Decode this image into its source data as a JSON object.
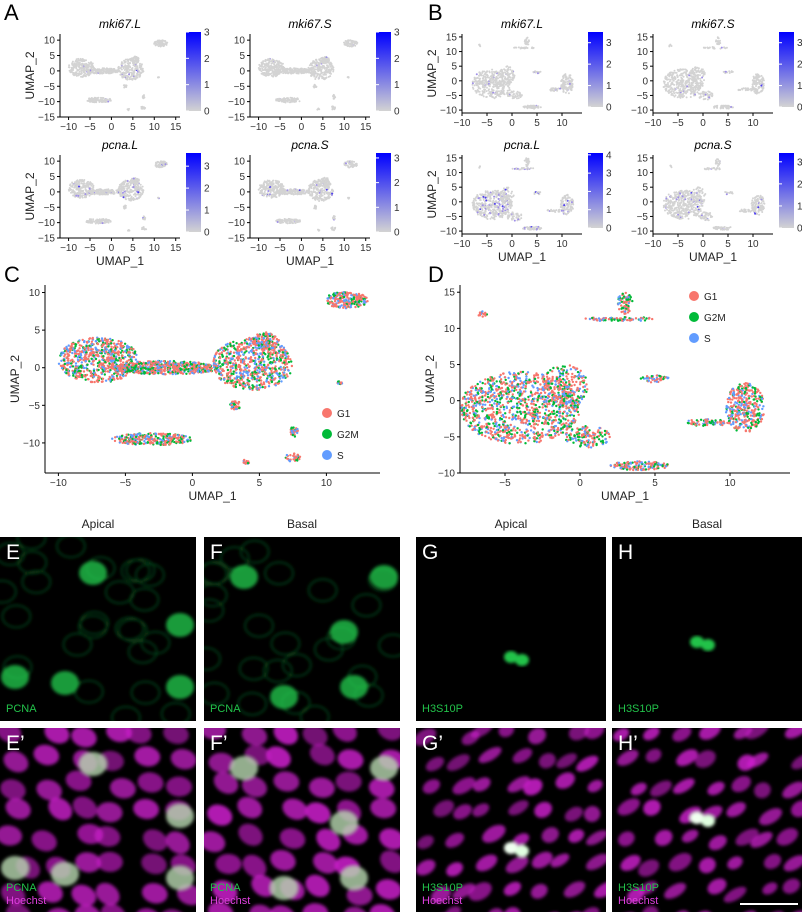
{
  "panel_labels": {
    "A": "A",
    "B": "B",
    "C": "C",
    "D": "D",
    "E": "E",
    "F": "F",
    "G": "G",
    "H": "H",
    "E2": "E’",
    "F2": "F’",
    "G2": "G’",
    "H2": "H’"
  },
  "colors": {
    "G1": "#F8766D",
    "G2M": "#00BA38",
    "S": "#619CFF",
    "expr_low": "#d3d3d3",
    "expr_high": "#0000ff",
    "pcna": "#22c24a",
    "hoechst": "#d020d0"
  },
  "chart_data": [
    {
      "id": "A-mki67L",
      "panel": "A",
      "type": "scatter",
      "title": "mki67.L",
      "xlabel": "",
      "ylabel": "UMAP_2",
      "xlim": [
        -12,
        16
      ],
      "ylim": [
        -15,
        12
      ],
      "xticks": [
        "-10",
        "-5",
        "0",
        "5",
        "10",
        "15"
      ],
      "yticks": [
        "10",
        "5",
        "0",
        "-5",
        "-10",
        "-15"
      ],
      "colorbar": {
        "range": [
          0,
          3
        ],
        "ticks": [
          "3",
          "2",
          "1",
          "0"
        ]
      }
    },
    {
      "id": "A-mki67S",
      "panel": "A",
      "type": "scatter",
      "title": "mki67.S",
      "xlabel": "",
      "ylabel": "",
      "xlim": [
        -12,
        16
      ],
      "ylim": [
        -15,
        12
      ],
      "xticks": [
        "-10",
        "-5",
        "0",
        "5",
        "10",
        "15"
      ],
      "yticks": [
        "10",
        "5",
        "0",
        "-5",
        "-10",
        "-15"
      ],
      "colorbar": {
        "range": [
          0,
          3
        ],
        "ticks": [
          "3",
          "2",
          "1",
          "0"
        ]
      }
    },
    {
      "id": "A-pcnaL",
      "panel": "A",
      "type": "scatter",
      "title": "pcna.L",
      "xlabel": "UMAP_1",
      "ylabel": "UMAP_2",
      "xlim": [
        -12,
        16
      ],
      "ylim": [
        -15,
        12
      ],
      "xticks": [
        "-10",
        "-5",
        "0",
        "5",
        "10",
        "15"
      ],
      "yticks": [
        "10",
        "5",
        "0",
        "-5",
        "-10",
        "-15"
      ],
      "colorbar": {
        "range": [
          0,
          3.6
        ],
        "ticks": [
          "3",
          "2",
          "1",
          "0"
        ]
      }
    },
    {
      "id": "A-pcnaS",
      "panel": "A",
      "type": "scatter",
      "title": "pcna.S",
      "xlabel": "UMAP_1",
      "ylabel": "",
      "xlim": [
        -12,
        16
      ],
      "ylim": [
        -15,
        12
      ],
      "xticks": [
        "-10",
        "-5",
        "0",
        "5",
        "10",
        "15"
      ],
      "yticks": [
        "10",
        "5",
        "0",
        "-5",
        "-10",
        "-15"
      ],
      "colorbar": {
        "range": [
          0,
          3.2
        ],
        "ticks": [
          "3",
          "2",
          "1",
          "0"
        ]
      }
    },
    {
      "id": "B-mki67L",
      "panel": "B",
      "type": "scatter",
      "title": "mki67.L",
      "xlabel": "",
      "ylabel": "UMAP_2",
      "xlim": [
        -10,
        14
      ],
      "ylim": [
        -11,
        16
      ],
      "xticks": [
        "-10",
        "-5",
        "0",
        "5",
        "10"
      ],
      "yticks": [
        "15",
        "10",
        "5",
        "0",
        "-5",
        "-10"
      ],
      "colorbar": {
        "range": [
          0,
          3.5
        ],
        "ticks": [
          "3",
          "2",
          "1",
          "0"
        ]
      }
    },
    {
      "id": "B-mki67S",
      "panel": "B",
      "type": "scatter",
      "title": "mki67.S",
      "xlabel": "",
      "ylabel": "",
      "xlim": [
        -10,
        14
      ],
      "ylim": [
        -11,
        16
      ],
      "xticks": [
        "-10",
        "-5",
        "0",
        "5",
        "10"
      ],
      "yticks": [
        "15",
        "10",
        "5",
        "0",
        "-5",
        "-10"
      ],
      "colorbar": {
        "range": [
          0,
          3.5
        ],
        "ticks": [
          "3",
          "2",
          "1",
          "0"
        ]
      }
    },
    {
      "id": "B-pcnaL",
      "panel": "B",
      "type": "scatter",
      "title": "pcna.L",
      "xlabel": "UMAP_1",
      "ylabel": "UMAP_2",
      "xlim": [
        -10,
        14
      ],
      "ylim": [
        -11,
        16
      ],
      "xticks": [
        "-10",
        "-5",
        "0",
        "5",
        "10"
      ],
      "yticks": [
        "15",
        "10",
        "5",
        "0",
        "-5",
        "-10"
      ],
      "colorbar": {
        "range": [
          0,
          4.1
        ],
        "ticks": [
          "4",
          "3",
          "2",
          "1",
          "0"
        ]
      }
    },
    {
      "id": "B-pcnaS",
      "panel": "B",
      "type": "scatter",
      "title": "pcna.S",
      "xlabel": "UMAP_1",
      "ylabel": "",
      "xlim": [
        -10,
        14
      ],
      "ylim": [
        -11,
        16
      ],
      "xticks": [
        "-10",
        "-5",
        "0",
        "5",
        "10"
      ],
      "yticks": [
        "15",
        "10",
        "5",
        "0",
        "-5",
        "-10"
      ],
      "colorbar": {
        "range": [
          0,
          3.4
        ],
        "ticks": [
          "3",
          "2",
          "1",
          "0"
        ]
      }
    },
    {
      "id": "C",
      "panel": "C",
      "type": "scatter",
      "title": "",
      "xlabel": "UMAP_1",
      "ylabel": "UMAP_2",
      "xlim": [
        -11,
        14
      ],
      "ylim": [
        -14,
        11
      ],
      "xticks": [
        "-10",
        "-5",
        "0",
        "5",
        "10"
      ],
      "yticks": [
        "10",
        "5",
        "0",
        "-5",
        "-10"
      ],
      "legend": {
        "position": "bottom-right",
        "entries": [
          "G1",
          "G2M",
          "S"
        ]
      }
    },
    {
      "id": "D",
      "panel": "D",
      "type": "scatter",
      "title": "",
      "xlabel": "UMAP_1",
      "ylabel": "UMAP_2",
      "xlim": [
        -8,
        14
      ],
      "ylim": [
        -10,
        16
      ],
      "xticks": [
        "-5",
        "0",
        "5",
        "10"
      ],
      "yticks": [
        "15",
        "10",
        "5",
        "0",
        "-5",
        "-10"
      ],
      "legend": {
        "position": "top-right",
        "entries": [
          "G1",
          "G2M",
          "S"
        ]
      }
    }
  ],
  "micro": {
    "col_titles": [
      "Apical",
      "Basal",
      "Apical",
      "Basal"
    ],
    "E": {
      "stain1": "PCNA"
    },
    "F": {
      "stain1": "PCNA"
    },
    "G": {
      "stain1": "H3S10P"
    },
    "H": {
      "stain1": "H3S10P"
    },
    "E2": {
      "stain1": "PCNA",
      "stain2": "Hoechst"
    },
    "F2": {
      "stain1": "PCNA",
      "stain2": "Hoechst"
    },
    "G2": {
      "stain1": "H3S10P",
      "stain2": "Hoechst"
    },
    "H2": {
      "stain1": "H3S10P",
      "stain2": "Hoechst"
    }
  }
}
